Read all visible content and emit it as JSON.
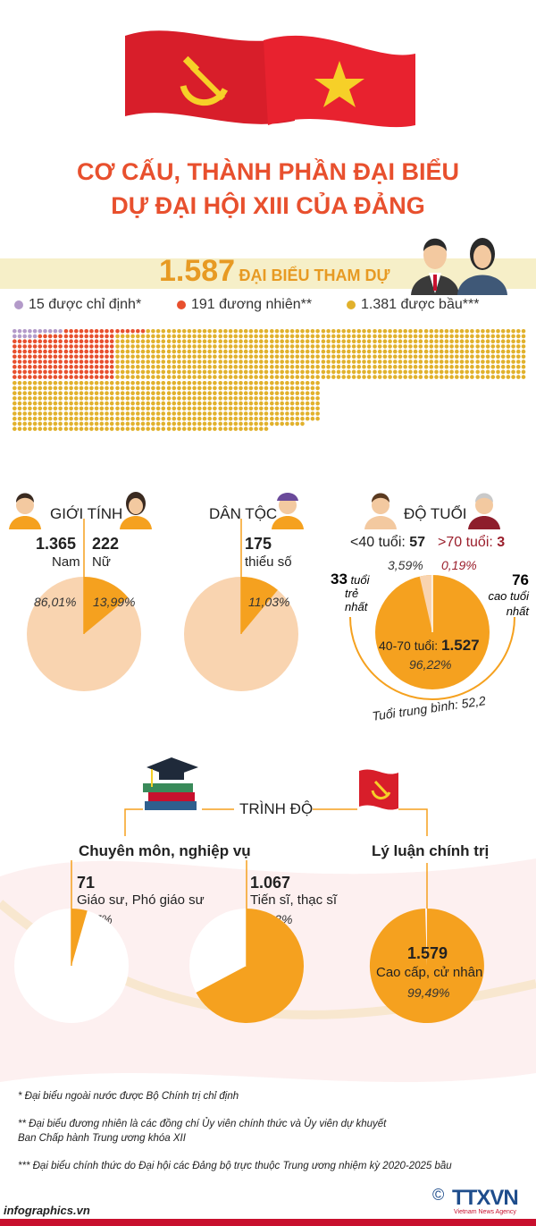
{
  "title_line1": "CƠ CẤU, THÀNH PHẦN ĐẠI BIỂU",
  "title_line2": "DỰ ĐẠI HỘI XIII CỦA ĐẢNG",
  "total": {
    "number": "1.587",
    "label": "ĐẠI BIỂU THAM DỰ"
  },
  "legend": [
    {
      "value": "15",
      "label": "được chỉ định*",
      "color": "#b39ac9"
    },
    {
      "value": "191",
      "label": "đương nhiên**",
      "color": "#e8502e"
    },
    {
      "value": "1.381",
      "label": "được bầu***",
      "color": "#e1b12c"
    }
  ],
  "gender": {
    "heading": "GIỚI TÍNH",
    "male": {
      "value": "1.365",
      "label": "Nam",
      "pct": "86,01%"
    },
    "female": {
      "value": "222",
      "label": "Nữ",
      "pct": "13,99%"
    }
  },
  "ethnic": {
    "heading": "DÂN TỘC",
    "value": "175",
    "label": "thiểu số",
    "pct": "11,03%"
  },
  "age": {
    "heading": "ĐỘ TUỔI",
    "under40": {
      "label": "<40 tuổi:",
      "value": "57",
      "pct": "3,59%"
    },
    "over70": {
      "label": ">70 tuổi:",
      "value": "3",
      "pct": "0,19%"
    },
    "middle": {
      "label": "40-70 tuổi:",
      "value": "1.527",
      "pct": "96,22%"
    },
    "youngest": {
      "value": "33",
      "label_lines": [
        "tuổi",
        "trẻ",
        "nhất"
      ]
    },
    "oldest": {
      "value": "76",
      "label_lines": [
        "cao tuổi",
        "nhất"
      ]
    },
    "average": "Tuổi trung bình: 52,2"
  },
  "education": {
    "heading": "TRÌNH ĐỘ",
    "professional": {
      "heading": "Chuyên môn, nghiệp vụ",
      "professors": {
        "value": "71",
        "label": "Giáo sư, Phó giáo sư",
        "pct": "4,47%"
      },
      "doctors": {
        "value": "1.067",
        "label": "Tiến sĩ, thạc sĩ",
        "pct": "67,23%"
      }
    },
    "political": {
      "heading": "Lý luận chính trị",
      "value": "1.579",
      "label": "Cao cấp, cử nhân",
      "pct": "99,49%"
    }
  },
  "footnotes": [
    "* Đại biểu ngoài nước được Bộ Chính trị chỉ định",
    "** Đại biểu đương nhiên là các đồng chí Ủy viên chính thức và Ủy viên dự khuyết",
    "Ban Chấp hành Trung ương khóa XII",
    "*** Đại biểu chính thức do Đại hội các Đảng bộ trực thuộc Trung ương nhiệm kỳ 2020-2025 bầu"
  ],
  "source": "infographics.vn",
  "agency": {
    "copyright": "©",
    "name": "TTXVN",
    "sub": "Vietnam News Agency"
  },
  "colors": {
    "orange": "#f5a11f",
    "peach": "#f9d4b0",
    "red": "#e8502e",
    "gold": "#e1b12c",
    "lavender": "#b39ac9"
  },
  "chart_data": [
    {
      "type": "bar",
      "title": "",
      "categories": [
        "được chỉ định*",
        "đương nhiên**",
        "được bầu***"
      ],
      "values": [
        15,
        191,
        1381
      ]
    },
    {
      "type": "pie",
      "title": "GIỚI TÍNH",
      "categories": [
        "Nam",
        "Nữ"
      ],
      "values": [
        86.01,
        13.99
      ]
    },
    {
      "type": "pie",
      "title": "DÂN TỘC",
      "categories": [
        "thiểu số"
      ],
      "values": [
        11.03
      ]
    },
    {
      "type": "pie",
      "title": "ĐỘ TUỔI",
      "categories": [
        "<40 tuổi",
        "40-70 tuổi",
        ">70 tuổi"
      ],
      "values": [
        3.59,
        96.22,
        0.19
      ]
    },
    {
      "type": "pie",
      "title": "Chuyên môn, nghiệp vụ",
      "categories": [
        "Giáo sư, Phó giáo sư",
        "Tiến sĩ, thạc sĩ"
      ],
      "values": [
        4.47,
        67.23
      ]
    },
    {
      "type": "pie",
      "title": "Lý luận chính trị",
      "categories": [
        "Cao cấp, cử nhân"
      ],
      "values": [
        99.49
      ]
    }
  ]
}
